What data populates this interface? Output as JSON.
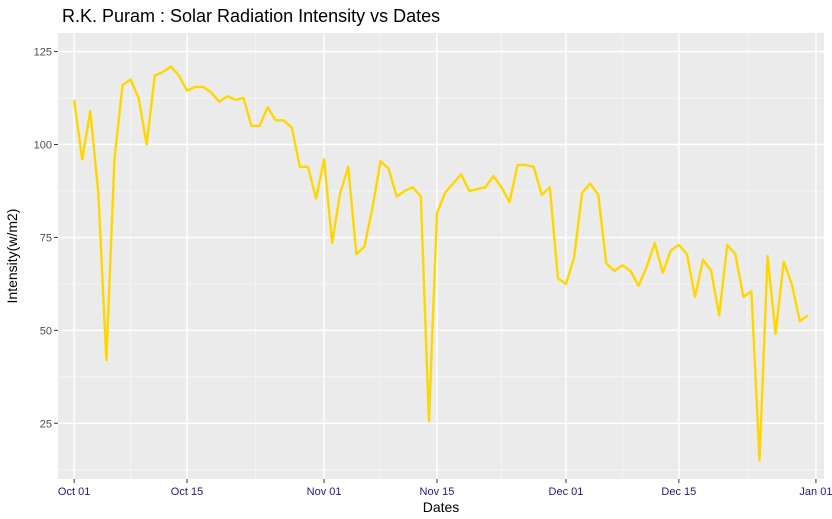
{
  "chart_data": {
    "type": "line",
    "title": "R.K. Puram : Solar Radiation Intensity vs Dates",
    "xlabel": "Dates",
    "ylabel": "Intensity(w/m2)",
    "x_range": [
      "2018-09-29",
      "2019-01-02"
    ],
    "ylim": [
      10,
      130
    ],
    "y_ticks": [
      25,
      50,
      75,
      100,
      125
    ],
    "x_ticks": [
      {
        "date": "2018-10-01",
        "label": "Oct 01"
      },
      {
        "date": "2018-10-15",
        "label": "Oct 15"
      },
      {
        "date": "2018-11-01",
        "label": "Nov 01"
      },
      {
        "date": "2018-11-15",
        "label": "Nov 15"
      },
      {
        "date": "2018-12-01",
        "label": "Dec 01"
      },
      {
        "date": "2018-12-15",
        "label": "Dec 15"
      },
      {
        "date": "2019-01-01",
        "label": "Jan 01"
      }
    ],
    "grid": true,
    "line_color": "#FFD700",
    "panel_color": "#EBEBEB",
    "series": [
      {
        "start_date": "2018-10-01",
        "values": [
          112,
          96,
          109,
          87,
          42,
          96,
          116,
          117.5,
          112.5,
          100,
          118.5,
          119.5,
          121,
          118.5,
          114.5,
          115.5,
          115.5,
          114,
          111.5,
          113,
          112,
          112.5,
          105,
          105,
          110,
          106.5,
          106.5,
          104.5,
          94,
          94,
          85.5,
          96,
          73.5,
          87,
          94,
          70.5,
          72.5,
          83,
          95.5,
          93.5,
          86,
          87.5,
          88.5,
          86,
          25.5,
          81.5,
          87,
          89.5,
          92,
          87.5,
          88,
          88.5,
          91.5,
          88.5,
          84.5,
          94.5,
          94.5,
          94,
          86.5,
          88.5,
          64,
          62.5,
          69.5,
          87,
          89.5,
          86.5,
          68,
          66,
          67.5,
          66,
          62,
          67,
          73.5,
          65.5,
          71.5,
          73,
          70.5,
          59,
          69,
          66,
          54,
          73,
          70.5,
          59,
          60.5,
          15,
          70,
          49,
          68.5,
          62.5,
          52.5,
          54
        ]
      }
    ]
  }
}
